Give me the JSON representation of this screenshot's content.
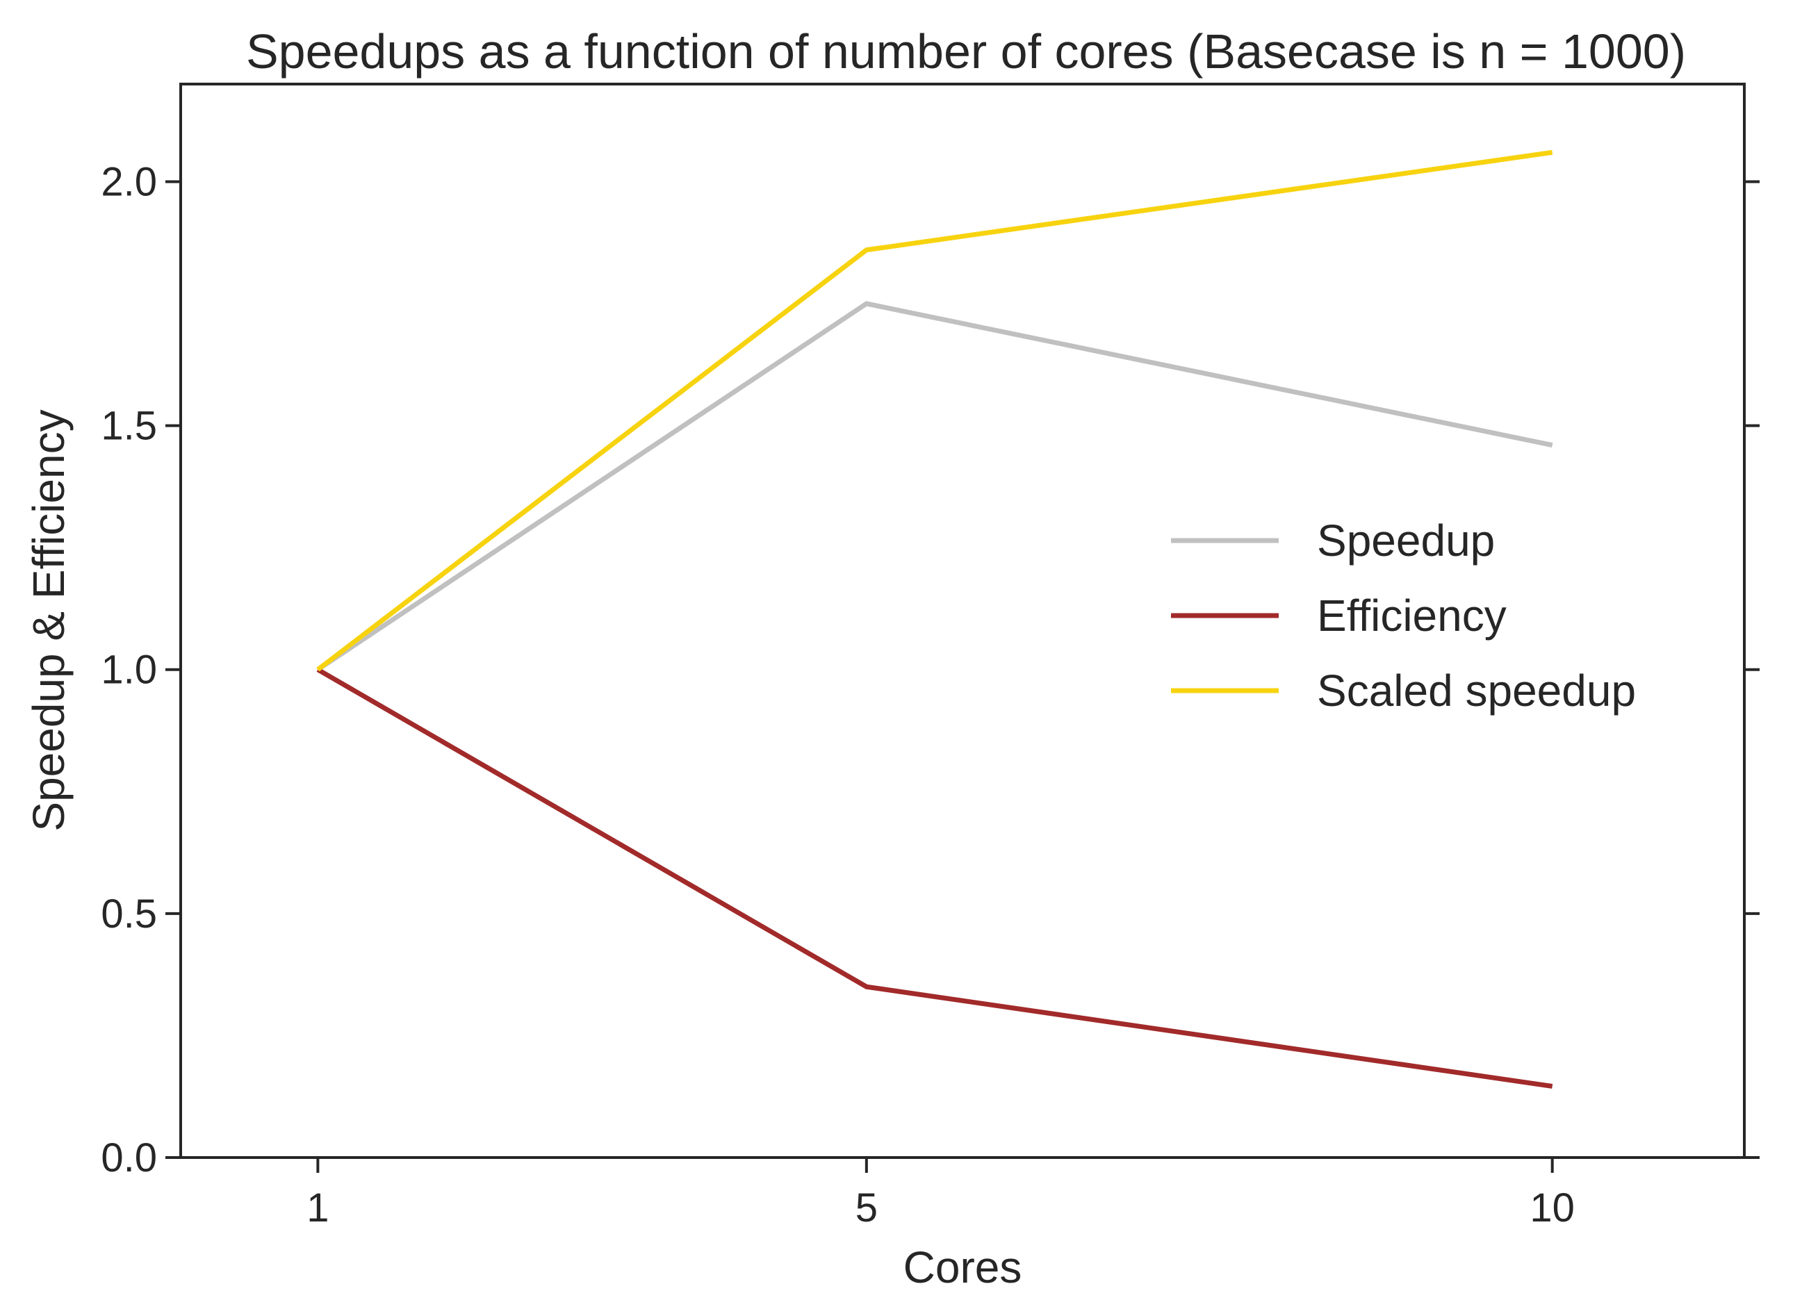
{
  "chart_data": {
    "type": "line",
    "title": "Speedups as a function of number of cores (Basecase is n = 1000)",
    "xlabel": "Cores",
    "ylabel": "Speedup & Efficiency",
    "x": [
      1,
      5,
      10
    ],
    "x_ticks": [
      {
        "value": 1,
        "label": "1"
      },
      {
        "value": 5,
        "label": "5"
      },
      {
        "value": 10,
        "label": "10"
      }
    ],
    "y_ticks": [
      {
        "value": 0.0,
        "label": "0.0"
      },
      {
        "value": 0.5,
        "label": "0.5"
      },
      {
        "value": 1.0,
        "label": "1.0"
      },
      {
        "value": 1.5,
        "label": "1.5"
      },
      {
        "value": 2.0,
        "label": "2.0"
      }
    ],
    "xlim": [
      0,
      11.4
    ],
    "ylim": [
      0,
      2.2
    ],
    "grid": false,
    "legend_position": "center-right",
    "series": [
      {
        "name": "Speedup",
        "color": "#c0c0c0",
        "values": [
          1.0,
          1.75,
          1.46
        ]
      },
      {
        "name": "Efficiency",
        "color": "#a22a2a",
        "values": [
          1.0,
          0.35,
          0.146
        ]
      },
      {
        "name": "Scaled speedup",
        "color": "#f7d30f",
        "values": [
          1.0,
          1.86,
          2.06
        ]
      }
    ]
  }
}
